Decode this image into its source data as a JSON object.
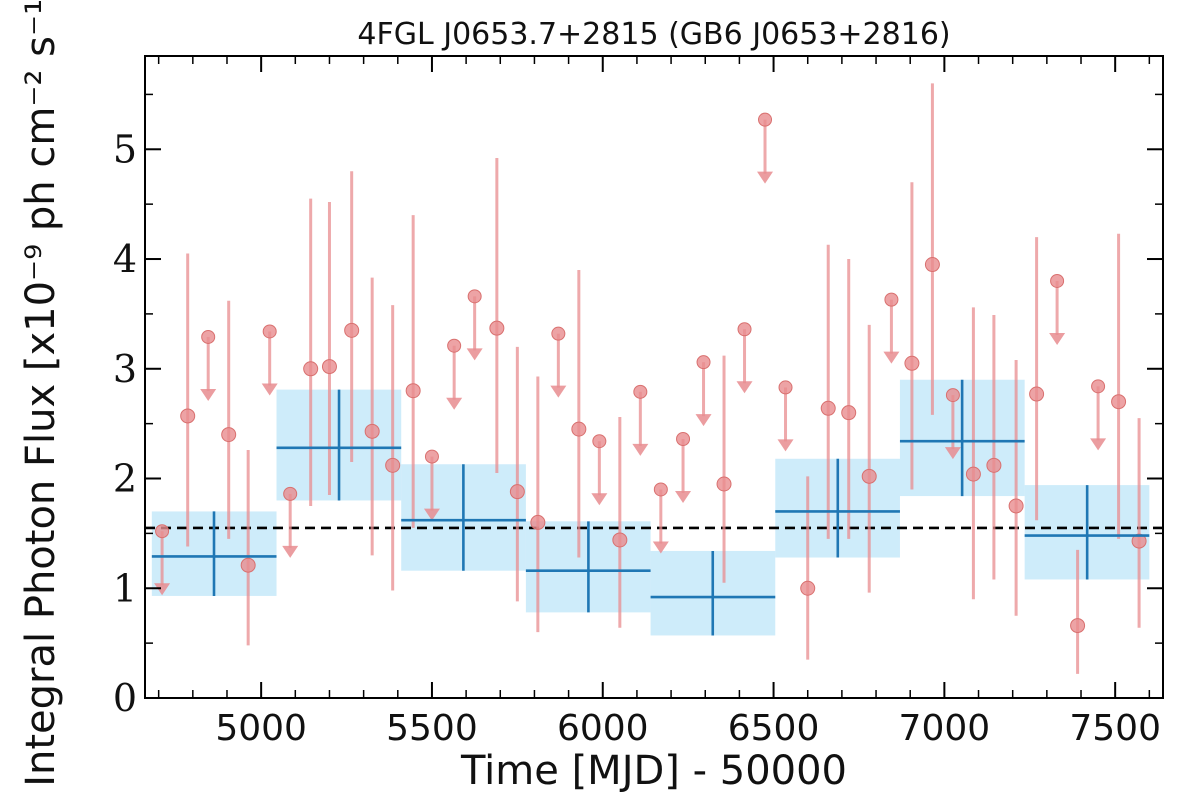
{
  "chart_data": {
    "type": "scatter",
    "title": "4FGL J0653.7+2815 (GB6 J0653+2816)",
    "xlabel": "Time [MJD] - 50000",
    "ylabel": "Integral Photon Flux [x10⁻⁹ ph cm⁻² s⁻¹]",
    "xlim": [
      4660,
      7640
    ],
    "ylim": [
      0,
      5.85
    ],
    "xticks": [
      5000,
      5500,
      6000,
      6500,
      7000,
      7500
    ],
    "yticks": [
      0,
      1,
      2,
      3,
      4,
      5
    ],
    "xtick_labels": [
      "5000",
      "5500",
      "6000",
      "6500",
      "7000",
      "7500"
    ],
    "ytick_labels": [
      "0",
      "1",
      "2",
      "3",
      "4",
      "5"
    ],
    "grid": false,
    "average_flux": 1.55,
    "colors": {
      "points": "#e88c8f",
      "bins": "#1f77b4",
      "bin_fill": "#a6dcf5",
      "average_line": "#000000"
    },
    "series": [
      {
        "type": "scatter_with_errorbars",
        "points": [
          {
            "x": 4785,
            "y": 2.57,
            "lo": 1.38,
            "hi": 4.05
          },
          {
            "x": 4905,
            "y": 2.4,
            "lo": 1.45,
            "hi": 3.62
          },
          {
            "x": 4962,
            "y": 1.21,
            "lo": 0.48,
            "hi": 2.26
          },
          {
            "x": 5145,
            "y": 3.0,
            "lo": 1.75,
            "hi": 4.55
          },
          {
            "x": 5200,
            "y": 3.02,
            "lo": 1.85,
            "hi": 4.52
          },
          {
            "x": 5265,
            "y": 3.35,
            "lo": 2.15,
            "hi": 4.8
          },
          {
            "x": 5325,
            "y": 2.43,
            "lo": 1.3,
            "hi": 3.83
          },
          {
            "x": 5385,
            "y": 2.12,
            "lo": 0.98,
            "hi": 3.58
          },
          {
            "x": 5445,
            "y": 2.8,
            "lo": 1.55,
            "hi": 4.4
          },
          {
            "x": 5690,
            "y": 3.37,
            "lo": 2.05,
            "hi": 4.92
          },
          {
            "x": 5750,
            "y": 1.88,
            "lo": 0.88,
            "hi": 3.2
          },
          {
            "x": 5810,
            "y": 1.6,
            "lo": 0.6,
            "hi": 2.93
          },
          {
            "x": 5930,
            "y": 2.45,
            "lo": 1.28,
            "hi": 3.9
          },
          {
            "x": 6050,
            "y": 1.44,
            "lo": 0.64,
            "hi": 2.56
          },
          {
            "x": 6355,
            "y": 1.95,
            "lo": 1.05,
            "hi": 3.12
          },
          {
            "x": 6600,
            "y": 1.0,
            "lo": 0.35,
            "hi": 2.02
          },
          {
            "x": 6660,
            "y": 2.64,
            "lo": 1.45,
            "hi": 4.13
          },
          {
            "x": 6720,
            "y": 2.6,
            "lo": 1.45,
            "hi": 4.0
          },
          {
            "x": 6780,
            "y": 2.02,
            "lo": 0.96,
            "hi": 3.4
          },
          {
            "x": 6905,
            "y": 3.05,
            "lo": 1.9,
            "hi": 4.7
          },
          {
            "x": 6965,
            "y": 3.95,
            "lo": 2.58,
            "hi": 5.6
          },
          {
            "x": 7085,
            "y": 2.04,
            "lo": 0.9,
            "hi": 3.56
          },
          {
            "x": 7145,
            "y": 2.12,
            "lo": 1.08,
            "hi": 3.49
          },
          {
            "x": 7210,
            "y": 1.75,
            "lo": 0.75,
            "hi": 3.08
          },
          {
            "x": 7270,
            "y": 2.77,
            "lo": 1.62,
            "hi": 4.2
          },
          {
            "x": 7390,
            "y": 0.66,
            "lo": 0.22,
            "hi": 1.35
          },
          {
            "x": 7510,
            "y": 2.7,
            "lo": 1.45,
            "hi": 4.23
          },
          {
            "x": 7570,
            "y": 1.43,
            "lo": 0.64,
            "hi": 2.55
          }
        ]
      },
      {
        "type": "upper_limits",
        "points": [
          {
            "x": 4710,
            "y": 1.52
          },
          {
            "x": 4845,
            "y": 3.29
          },
          {
            "x": 5025,
            "y": 3.34
          },
          {
            "x": 5085,
            "y": 1.86
          },
          {
            "x": 5500,
            "y": 2.2
          },
          {
            "x": 5565,
            "y": 3.21
          },
          {
            "x": 5625,
            "y": 3.66
          },
          {
            "x": 5870,
            "y": 3.32
          },
          {
            "x": 5990,
            "y": 2.34
          },
          {
            "x": 6110,
            "y": 2.79
          },
          {
            "x": 6170,
            "y": 1.9
          },
          {
            "x": 6235,
            "y": 2.36
          },
          {
            "x": 6295,
            "y": 3.06
          },
          {
            "x": 6415,
            "y": 3.36
          },
          {
            "x": 6475,
            "y": 5.27
          },
          {
            "x": 6535,
            "y": 2.83
          },
          {
            "x": 6845,
            "y": 3.63
          },
          {
            "x": 7025,
            "y": 2.76
          },
          {
            "x": 7330,
            "y": 3.8
          },
          {
            "x": 7450,
            "y": 2.84
          }
        ]
      },
      {
        "type": "binned",
        "bins": [
          {
            "x0": 4680,
            "x1": 5045,
            "xc": 4862,
            "y": 1.29,
            "lo": 0.93,
            "hi": 1.7
          },
          {
            "x0": 5045,
            "x1": 5410,
            "xc": 5228,
            "y": 2.28,
            "lo": 1.8,
            "hi": 2.81
          },
          {
            "x0": 5410,
            "x1": 5775,
            "xc": 5592,
            "y": 1.62,
            "lo": 1.16,
            "hi": 2.13
          },
          {
            "x0": 5775,
            "x1": 6140,
            "xc": 5958,
            "y": 1.16,
            "lo": 0.78,
            "hi": 1.61
          },
          {
            "x0": 6140,
            "x1": 6505,
            "xc": 6322,
            "y": 0.92,
            "lo": 0.57,
            "hi": 1.34
          },
          {
            "x0": 6505,
            "x1": 6870,
            "xc": 6688,
            "y": 1.7,
            "lo": 1.28,
            "hi": 2.18
          },
          {
            "x0": 6870,
            "x1": 7235,
            "xc": 7052,
            "y": 2.34,
            "lo": 1.84,
            "hi": 2.9
          },
          {
            "x0": 7235,
            "x1": 7600,
            "xc": 7418,
            "y": 1.48,
            "lo": 1.08,
            "hi": 1.94
          }
        ]
      }
    ]
  }
}
